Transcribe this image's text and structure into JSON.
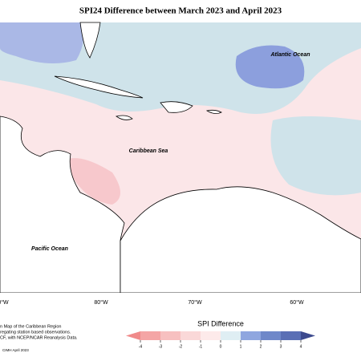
{
  "title": "SPI24 Difference between March 2023 and April 2023",
  "map_labels": [
    "Atlantic Ocean",
    "Caribbean Sea",
    "Pacific Ocean"
  ],
  "longitude_labels": [
    "0°W",
    "80°W",
    "70°W",
    "60°W"
  ],
  "credits": [
    "n Map of the Caribbean Region",
    "regating station based observations.",
    "CF, with NCEP/NCAR Reanalysis Data.",
    "CIMH April 2023"
  ],
  "legend": {
    "title": "SPI Difference",
    "ticks": [
      -4,
      -3,
      -2,
      -1,
      0,
      1,
      2,
      3,
      4
    ],
    "colors": [
      "#f08a8a",
      "#f4a5a5",
      "#f7c0c0",
      "#fad8d8",
      "#fdeaea",
      "#dfeef3",
      "#8fa6df",
      "#6f88c9",
      "#5a6fb5",
      "#3c4a8e"
    ]
  }
}
